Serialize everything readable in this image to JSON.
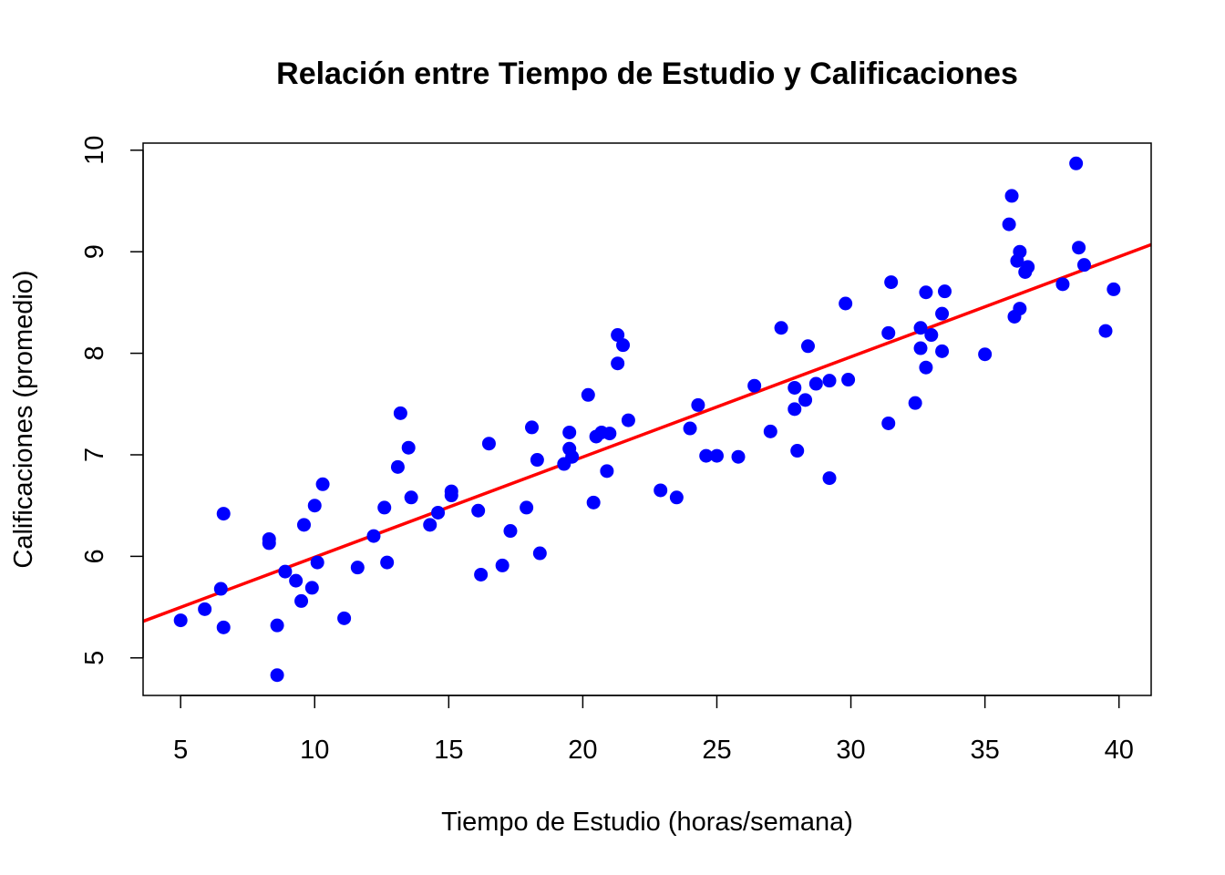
{
  "chart_data": {
    "type": "scatter",
    "title": "Relación entre Tiempo de Estudio y Calificaciones",
    "xlabel": "Tiempo de Estudio (horas/semana)",
    "ylabel": "Calificaciones (promedio)",
    "xlim": [
      3.6,
      41.2
    ],
    "ylim": [
      4.63,
      10.07
    ],
    "x_ticks": [
      5,
      10,
      15,
      20,
      25,
      30,
      35,
      40
    ],
    "y_ticks": [
      5,
      6,
      7,
      8,
      9,
      10
    ],
    "grid": false,
    "legend": "none",
    "point_color": "#0000ff",
    "line_color": "#ff0000",
    "trend_line": {
      "x": [
        3.6,
        41.2
      ],
      "y": [
        5.36,
        9.07
      ]
    },
    "points": [
      {
        "x": 5.0,
        "y": 5.37
      },
      {
        "x": 5.9,
        "y": 5.48
      },
      {
        "x": 6.5,
        "y": 5.68
      },
      {
        "x": 6.6,
        "y": 6.42
      },
      {
        "x": 6.6,
        "y": 5.3
      },
      {
        "x": 8.3,
        "y": 6.17
      },
      {
        "x": 8.3,
        "y": 6.13
      },
      {
        "x": 8.6,
        "y": 5.32
      },
      {
        "x": 8.6,
        "y": 4.83
      },
      {
        "x": 8.9,
        "y": 5.85
      },
      {
        "x": 9.3,
        "y": 5.76
      },
      {
        "x": 9.5,
        "y": 5.56
      },
      {
        "x": 9.6,
        "y": 6.31
      },
      {
        "x": 9.9,
        "y": 5.69
      },
      {
        "x": 10.0,
        "y": 6.5
      },
      {
        "x": 10.1,
        "y": 5.94
      },
      {
        "x": 10.3,
        "y": 6.71
      },
      {
        "x": 11.1,
        "y": 5.39
      },
      {
        "x": 11.6,
        "y": 5.89
      },
      {
        "x": 12.2,
        "y": 6.2
      },
      {
        "x": 12.6,
        "y": 6.48
      },
      {
        "x": 12.7,
        "y": 5.94
      },
      {
        "x": 13.1,
        "y": 6.88
      },
      {
        "x": 13.2,
        "y": 7.41
      },
      {
        "x": 13.5,
        "y": 7.07
      },
      {
        "x": 13.6,
        "y": 6.58
      },
      {
        "x": 14.3,
        "y": 6.31
      },
      {
        "x": 14.6,
        "y": 6.43
      },
      {
        "x": 15.1,
        "y": 6.64
      },
      {
        "x": 15.1,
        "y": 6.6
      },
      {
        "x": 16.1,
        "y": 6.45
      },
      {
        "x": 16.2,
        "y": 5.82
      },
      {
        "x": 16.5,
        "y": 7.11
      },
      {
        "x": 17.0,
        "y": 5.91
      },
      {
        "x": 17.3,
        "y": 6.25
      },
      {
        "x": 17.9,
        "y": 6.48
      },
      {
        "x": 18.1,
        "y": 7.27
      },
      {
        "x": 18.3,
        "y": 6.95
      },
      {
        "x": 18.4,
        "y": 6.03
      },
      {
        "x": 19.3,
        "y": 6.91
      },
      {
        "x": 19.5,
        "y": 7.22
      },
      {
        "x": 19.5,
        "y": 7.06
      },
      {
        "x": 19.6,
        "y": 6.98
      },
      {
        "x": 20.2,
        "y": 7.59
      },
      {
        "x": 20.4,
        "y": 6.53
      },
      {
        "x": 20.5,
        "y": 7.18
      },
      {
        "x": 20.7,
        "y": 7.22
      },
      {
        "x": 20.9,
        "y": 6.84
      },
      {
        "x": 21.0,
        "y": 7.21
      },
      {
        "x": 21.3,
        "y": 8.18
      },
      {
        "x": 21.3,
        "y": 7.9
      },
      {
        "x": 21.5,
        "y": 8.08
      },
      {
        "x": 21.7,
        "y": 7.34
      },
      {
        "x": 22.9,
        "y": 6.65
      },
      {
        "x": 23.5,
        "y": 6.58
      },
      {
        "x": 24.0,
        "y": 7.26
      },
      {
        "x": 24.3,
        "y": 7.49
      },
      {
        "x": 24.6,
        "y": 6.99
      },
      {
        "x": 25.0,
        "y": 6.99
      },
      {
        "x": 25.8,
        "y": 6.98
      },
      {
        "x": 26.4,
        "y": 7.68
      },
      {
        "x": 27.0,
        "y": 7.23
      },
      {
        "x": 27.4,
        "y": 8.25
      },
      {
        "x": 27.9,
        "y": 7.66
      },
      {
        "x": 27.9,
        "y": 7.45
      },
      {
        "x": 28.0,
        "y": 7.04
      },
      {
        "x": 28.3,
        "y": 7.54
      },
      {
        "x": 28.4,
        "y": 8.07
      },
      {
        "x": 28.7,
        "y": 7.7
      },
      {
        "x": 29.2,
        "y": 7.73
      },
      {
        "x": 29.2,
        "y": 6.77
      },
      {
        "x": 29.8,
        "y": 8.49
      },
      {
        "x": 29.9,
        "y": 7.74
      },
      {
        "x": 31.4,
        "y": 8.2
      },
      {
        "x": 31.4,
        "y": 7.31
      },
      {
        "x": 31.5,
        "y": 8.7
      },
      {
        "x": 32.4,
        "y": 7.51
      },
      {
        "x": 32.6,
        "y": 8.25
      },
      {
        "x": 32.6,
        "y": 8.05
      },
      {
        "x": 32.8,
        "y": 8.6
      },
      {
        "x": 32.8,
        "y": 7.86
      },
      {
        "x": 33.0,
        "y": 8.18
      },
      {
        "x": 33.4,
        "y": 8.39
      },
      {
        "x": 33.4,
        "y": 8.02
      },
      {
        "x": 33.5,
        "y": 8.61
      },
      {
        "x": 35.0,
        "y": 7.99
      },
      {
        "x": 35.9,
        "y": 9.27
      },
      {
        "x": 36.0,
        "y": 9.55
      },
      {
        "x": 36.1,
        "y": 8.36
      },
      {
        "x": 36.2,
        "y": 8.91
      },
      {
        "x": 36.3,
        "y": 9.0
      },
      {
        "x": 36.3,
        "y": 8.44
      },
      {
        "x": 36.5,
        "y": 8.8
      },
      {
        "x": 36.6,
        "y": 8.85
      },
      {
        "x": 37.9,
        "y": 8.68
      },
      {
        "x": 38.4,
        "y": 9.87
      },
      {
        "x": 38.5,
        "y": 9.04
      },
      {
        "x": 38.7,
        "y": 8.87
      },
      {
        "x": 39.5,
        "y": 8.22
      },
      {
        "x": 39.8,
        "y": 8.63
      }
    ]
  }
}
